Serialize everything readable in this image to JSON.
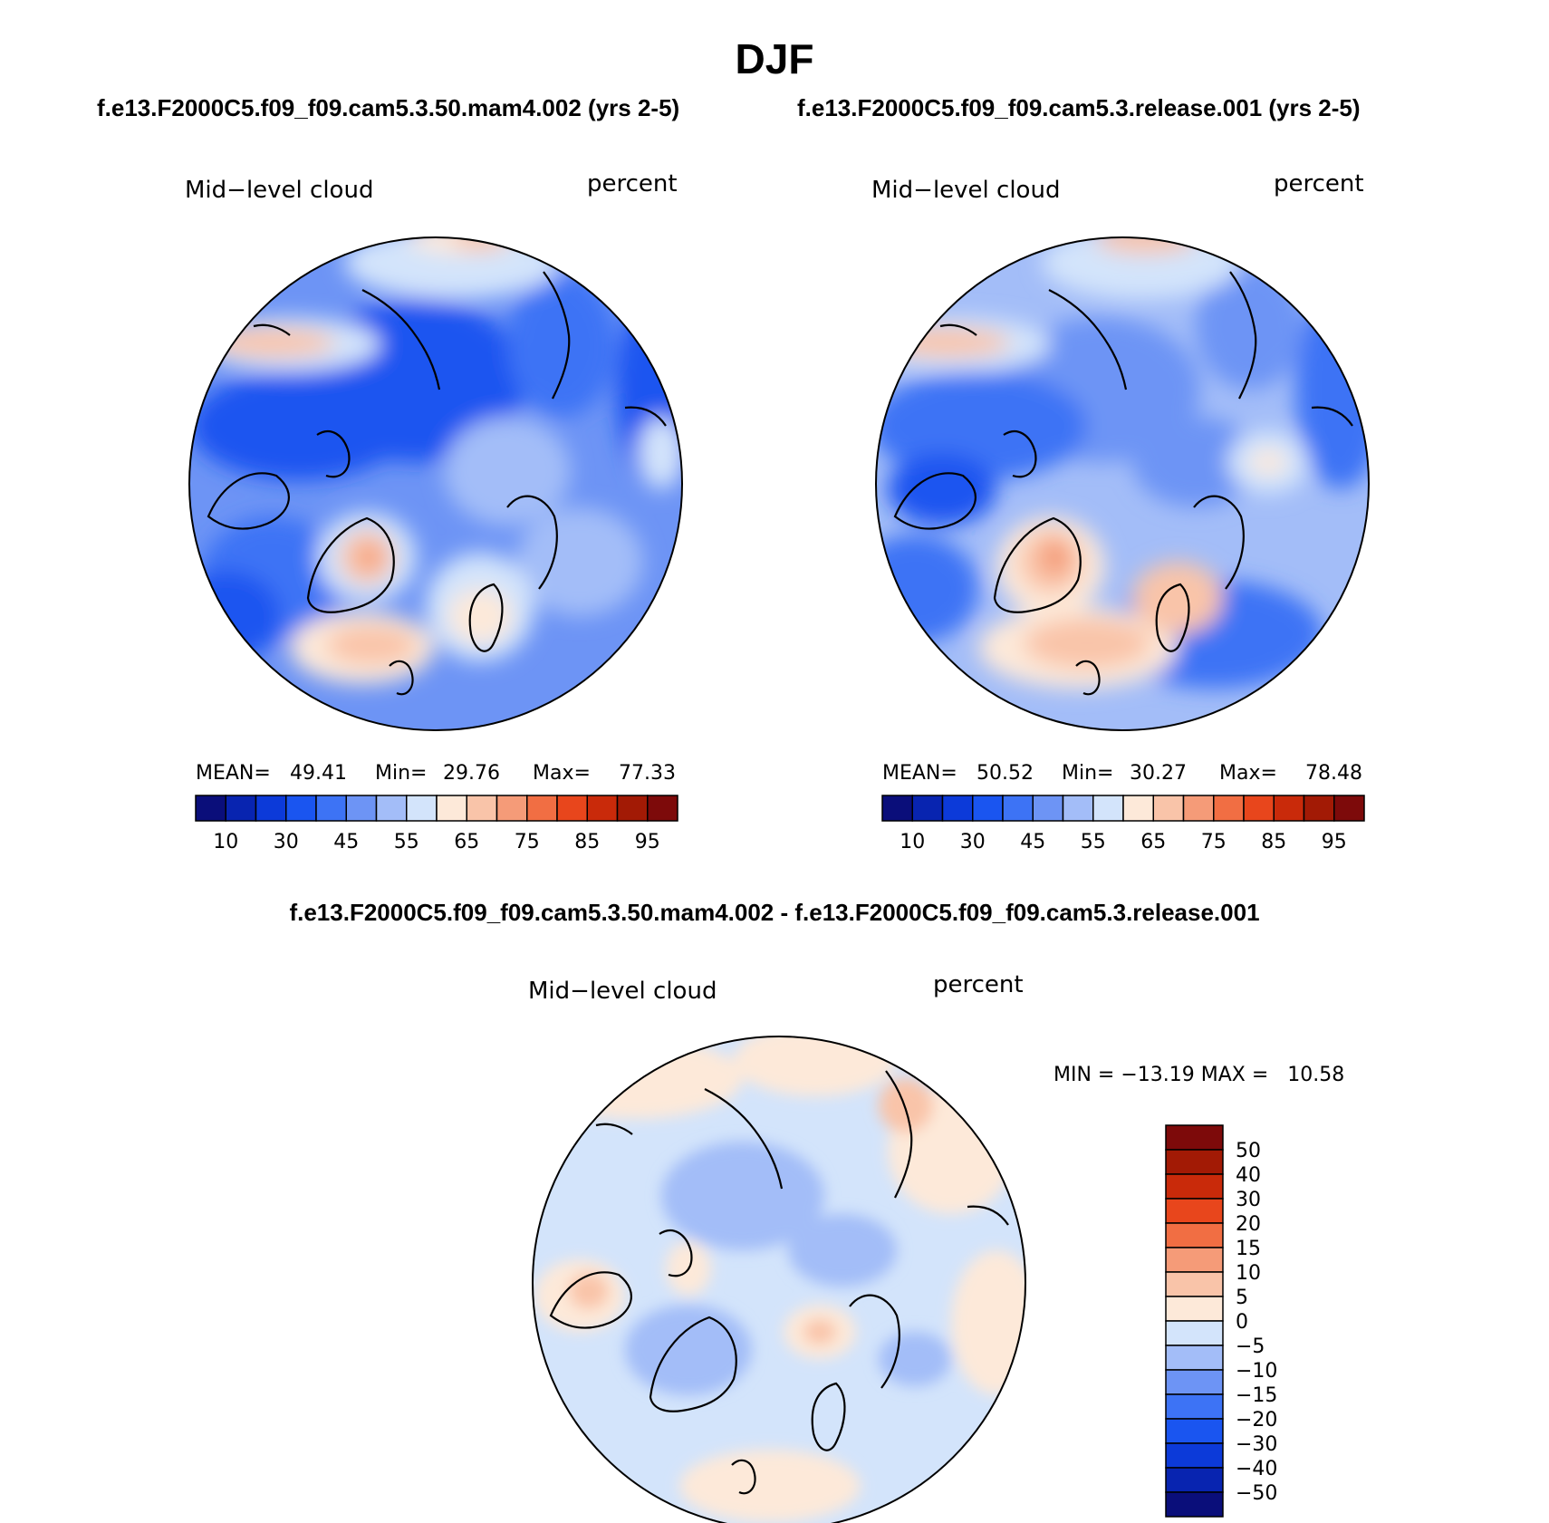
{
  "figure": {
    "title": "DJF",
    "case_left": "f.e13.F2000C5.f09_f09.cam5.3.50.mam4.002 (yrs 2-5)",
    "case_right": "f.e13.F2000C5.f09_f09.cam5.3.release.001 (yrs 2-5)",
    "diff_title": "f.e13.F2000C5.f09_f09.cam5.3.50.mam4.002 - f.e13.F2000C5.f09_f09.cam5.3.release.001"
  },
  "chart_data": [
    {
      "type": "heatmap",
      "projection": "north-polar-stereographic",
      "variable": "Mid−level cloud",
      "units": "percent",
      "stats": {
        "mean_label": "MEAN=",
        "mean": "49.41",
        "min_label": "Min=",
        "min": "29.76",
        "max_label": "Max=",
        "max": "77.33"
      },
      "colorbar": {
        "orientation": "horizontal",
        "levels": [
          5,
          10,
          20,
          30,
          40,
          45,
          50,
          55,
          60,
          65,
          70,
          75,
          80,
          85,
          90,
          95
        ],
        "tick_labels": [
          "10",
          "30",
          "45",
          "55",
          "65",
          "75",
          "85",
          "95"
        ],
        "colors": [
          "#0a0e7a",
          "#0824b0",
          "#0c3ad9",
          "#1a55f0",
          "#3d73f5",
          "#6d94f5",
          "#a3bdf8",
          "#d3e4fb",
          "#fde9d9",
          "#f9c4a9",
          "#f59b78",
          "#f16e43",
          "#e8461c",
          "#c92a0a",
          "#a21a05",
          "#7d0a0a"
        ]
      }
    },
    {
      "type": "heatmap",
      "projection": "north-polar-stereographic",
      "variable": "Mid−level cloud",
      "units": "percent",
      "stats": {
        "mean_label": "MEAN=",
        "mean": "50.52",
        "min_label": "Min=",
        "min": "30.27",
        "max_label": "Max=",
        "max": "78.48"
      },
      "colorbar": {
        "orientation": "horizontal",
        "levels": [
          5,
          10,
          20,
          30,
          40,
          45,
          50,
          55,
          60,
          65,
          70,
          75,
          80,
          85,
          90,
          95
        ],
        "tick_labels": [
          "10",
          "30",
          "45",
          "55",
          "65",
          "75",
          "85",
          "95"
        ],
        "colors": [
          "#0a0e7a",
          "#0824b0",
          "#0c3ad9",
          "#1a55f0",
          "#3d73f5",
          "#6d94f5",
          "#a3bdf8",
          "#d3e4fb",
          "#fde9d9",
          "#f9c4a9",
          "#f59b78",
          "#f16e43",
          "#e8461c",
          "#c92a0a",
          "#a21a05",
          "#7d0a0a"
        ]
      }
    },
    {
      "type": "heatmap",
      "projection": "north-polar-stereographic",
      "variable": "Mid−level cloud",
      "units": "percent",
      "stats": {
        "text": "MIN = −13.19 MAX =   10.58",
        "min": -13.19,
        "max": 10.58
      },
      "colorbar": {
        "orientation": "vertical",
        "levels": [
          -50,
          -40,
          -30,
          -20,
          -15,
          -10,
          -5,
          0,
          5,
          10,
          15,
          20,
          30,
          40,
          50
        ],
        "tick_labels": [
          "50",
          "40",
          "30",
          "20",
          "15",
          "10",
          "5",
          "0",
          "−5",
          "−10",
          "−15",
          "−20",
          "−30",
          "−40",
          "−50"
        ],
        "colors": [
          "#7d0a0a",
          "#a21a05",
          "#c92a0a",
          "#e8461c",
          "#f16e43",
          "#f59b78",
          "#f9c4a9",
          "#fde9d9",
          "#d3e4fb",
          "#a3bdf8",
          "#6d94f5",
          "#3d73f5",
          "#1a55f0",
          "#0c3ad9",
          "#0824b0",
          "#0a0e7a"
        ]
      }
    }
  ]
}
